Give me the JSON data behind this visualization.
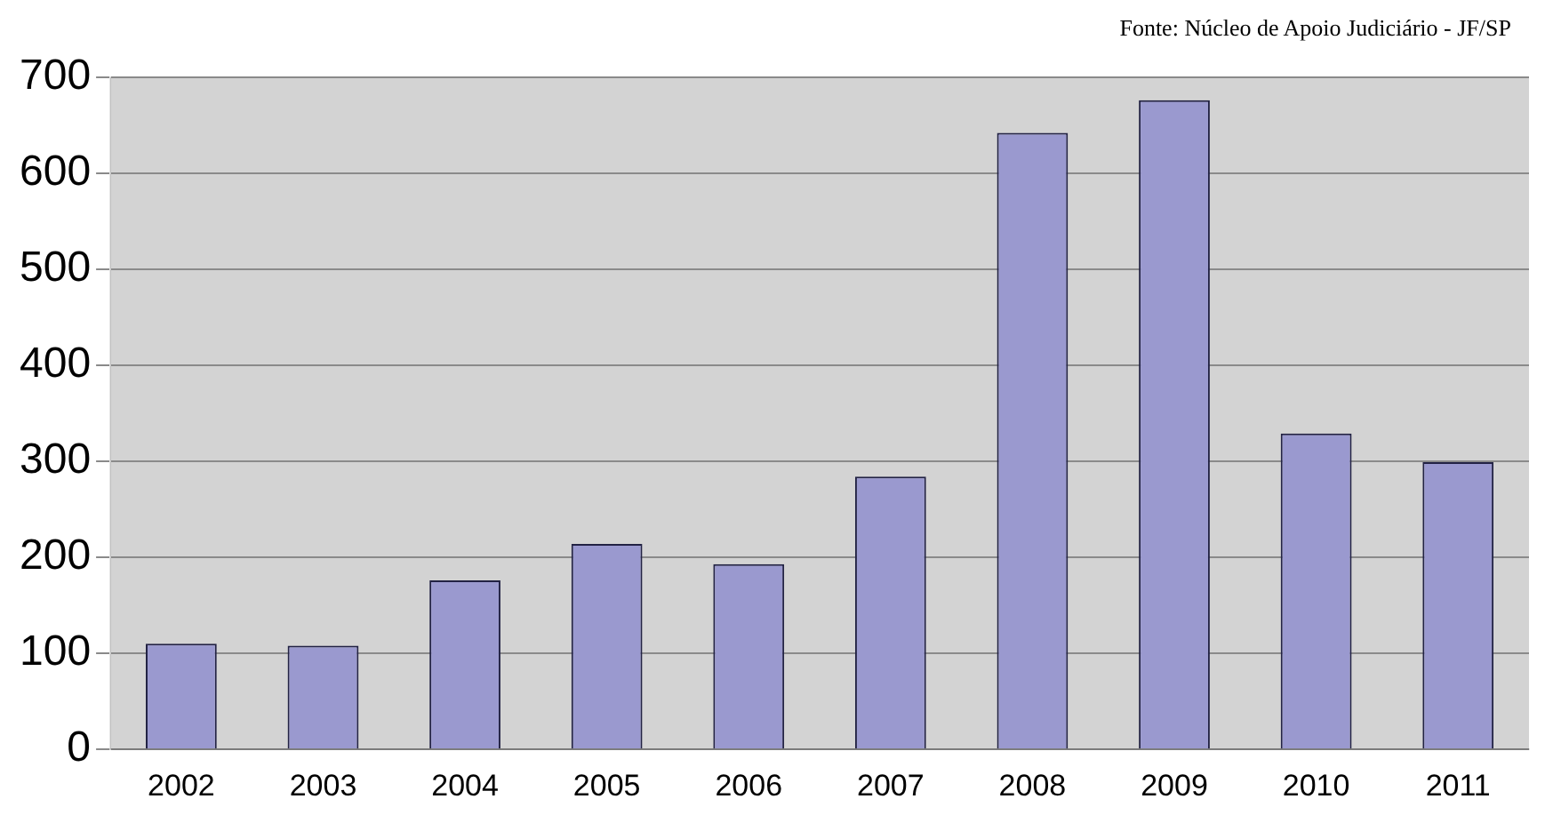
{
  "chart_data": {
    "type": "bar",
    "annotations": [
      "Fonte: Núcleo de Apoio Judiciário - JF/SP"
    ],
    "categories": [
      "2002",
      "2003",
      "2004",
      "2005",
      "2006",
      "2007",
      "2008",
      "2009",
      "2010",
      "2011"
    ],
    "values": [
      110,
      108,
      176,
      214,
      193,
      284,
      642,
      676,
      329,
      299
    ],
    "color": "#9a99cf",
    "ylim": [
      0,
      700
    ],
    "yticks": [
      0,
      100,
      200,
      300,
      400,
      500,
      600,
      700
    ],
    "grid": "y",
    "legend": false
  }
}
